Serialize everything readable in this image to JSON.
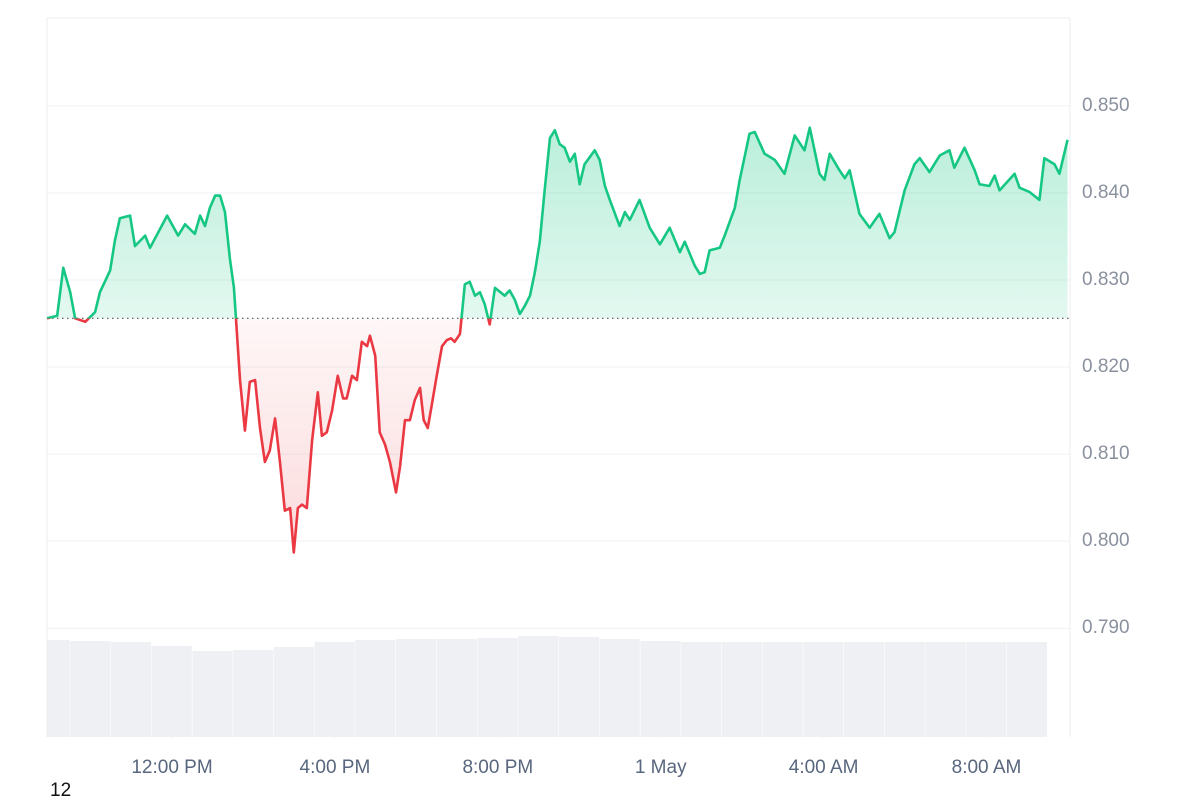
{
  "chart_data": {
    "type": "line",
    "corner_text": "12",
    "x": [
      8.93,
      9.18,
      9.33,
      9.5,
      9.62,
      9.87,
      10.11,
      10.23,
      10.48,
      10.6,
      10.72,
      10.97,
      11.09,
      11.34,
      11.46,
      11.88,
      12.15,
      12.32,
      12.56,
      12.69,
      12.81,
      12.93,
      13.06,
      13.18,
      13.3,
      13.42,
      13.52,
      13.67,
      13.79,
      13.91,
      14.04,
      14.16,
      14.28,
      14.4,
      14.53,
      14.65,
      14.77,
      14.9,
      14.99,
      15.09,
      15.19,
      15.31,
      15.44,
      15.58,
      15.68,
      15.8,
      15.93,
      16.07,
      16.2,
      16.29,
      16.42,
      16.54,
      16.66,
      16.79,
      16.86,
      16.99,
      17.1,
      17.23,
      17.35,
      17.5,
      17.6,
      17.72,
      17.84,
      17.96,
      18.09,
      18.18,
      18.28,
      18.38,
      18.5,
      18.63,
      18.75,
      18.85,
      18.94,
      19.07,
      19.19,
      19.31,
      19.44,
      19.56,
      19.68,
      19.8,
      19.93,
      20.17,
      20.29,
      20.42,
      20.54,
      20.66,
      20.79,
      20.91,
      21.03,
      21.15,
      21.28,
      21.4,
      21.52,
      21.64,
      21.77,
      21.89,
      22.01,
      22.13,
      22.38,
      22.5,
      22.63,
      22.75,
      22.99,
      23.12,
      23.24,
      23.48,
      23.73,
      23.98,
      24.22,
      24.47,
      24.59,
      24.84,
      24.96,
      25.08,
      25.2,
      25.45,
      25.57,
      25.82,
      25.94,
      26.18,
      26.31,
      26.55,
      26.8,
      27.04,
      27.29,
      27.53,
      27.66,
      27.9,
      28.02,
      28.15,
      28.39,
      28.52,
      28.64,
      28.88,
      29.13,
      29.37,
      29.62,
      29.74,
      29.99,
      30.23,
      30.36,
      30.6,
      30.85,
      31.09,
      31.21,
      31.46,
      31.71,
      31.83,
      32.07,
      32.2,
      32.32,
      32.69,
      32.81,
      33.06,
      33.3,
      33.42,
      33.67,
      33.79,
      33.99
    ],
    "series": [
      {
        "name": "Price",
        "up_color": "#16c784",
        "down_color": "#ea3943",
        "values": [
          0.8256,
          0.8259,
          0.8314,
          0.8286,
          0.8256,
          0.8252,
          0.8263,
          0.8286,
          0.8311,
          0.8346,
          0.8371,
          0.8374,
          0.8339,
          0.8351,
          0.8337,
          0.8374,
          0.8351,
          0.8364,
          0.8353,
          0.8374,
          0.8362,
          0.8383,
          0.8397,
          0.8397,
          0.8378,
          0.8325,
          0.8291,
          0.8185,
          0.8127,
          0.8183,
          0.8185,
          0.813,
          0.8091,
          0.8104,
          0.8141,
          0.8091,
          0.8035,
          0.8038,
          0.7987,
          0.8038,
          0.8042,
          0.8038,
          0.8116,
          0.8171,
          0.8121,
          0.8125,
          0.815,
          0.819,
          0.8164,
          0.8164,
          0.819,
          0.8185,
          0.8229,
          0.8224,
          0.8236,
          0.8213,
          0.8125,
          0.8111,
          0.8091,
          0.8056,
          0.8086,
          0.8139,
          0.8139,
          0.8162,
          0.8176,
          0.8139,
          0.813,
          0.8157,
          0.819,
          0.8224,
          0.8231,
          0.8233,
          0.8229,
          0.8238,
          0.8295,
          0.8298,
          0.8282,
          0.8286,
          0.8272,
          0.8249,
          0.8291,
          0.8282,
          0.8288,
          0.8277,
          0.8261,
          0.827,
          0.8282,
          0.8309,
          0.8344,
          0.8403,
          0.8463,
          0.8472,
          0.8456,
          0.8452,
          0.8436,
          0.8445,
          0.841,
          0.8433,
          0.8449,
          0.8438,
          0.8408,
          0.8392,
          0.8362,
          0.8378,
          0.8369,
          0.8392,
          0.836,
          0.8341,
          0.836,
          0.8332,
          0.8344,
          0.8316,
          0.8307,
          0.8309,
          0.8334,
          0.8337,
          0.8351,
          0.8383,
          0.8415,
          0.8468,
          0.847,
          0.8445,
          0.8438,
          0.8422,
          0.8466,
          0.8449,
          0.8475,
          0.8422,
          0.8415,
          0.8445,
          0.8426,
          0.8417,
          0.8426,
          0.8376,
          0.836,
          0.8376,
          0.8348,
          0.8355,
          0.8403,
          0.8433,
          0.844,
          0.8424,
          0.8443,
          0.8449,
          0.8429,
          0.8452,
          0.8426,
          0.841,
          0.8408,
          0.842,
          0.8403,
          0.8422,
          0.8406,
          0.8401,
          0.8392,
          0.844,
          0.8433,
          0.8422,
          0.8461
        ]
      }
    ],
    "baseline": 0.8256,
    "volume": {
      "color": "#eef0f3",
      "x": [
        9,
        10,
        11,
        12,
        13,
        14,
        15,
        16,
        17,
        18,
        19,
        20,
        21,
        22,
        23,
        24,
        25,
        26,
        27,
        28,
        29,
        30,
        31,
        32,
        33
      ],
      "values": [
        97,
        96,
        95,
        91,
        86,
        87,
        90,
        95,
        97,
        98,
        98,
        99,
        101,
        100,
        98,
        96,
        95,
        95,
        95,
        95,
        95,
        95,
        95,
        95,
        95
      ]
    },
    "xlim": [
      8.93,
      34.05
    ],
    "xticks": [
      {
        "value": 12,
        "label": "12:00 PM"
      },
      {
        "value": 16,
        "label": "4:00 PM"
      },
      {
        "value": 20,
        "label": "8:00 PM"
      },
      {
        "value": 24,
        "label": "1 May"
      },
      {
        "value": 28,
        "label": "4:00 AM"
      },
      {
        "value": 32,
        "label": "8:00 AM"
      }
    ],
    "ylim": [
      0.7775,
      0.8601
    ],
    "yticks": [
      {
        "value": 0.79,
        "label": "0.790"
      },
      {
        "value": 0.8,
        "label": "0.800"
      },
      {
        "value": 0.81,
        "label": "0.810"
      },
      {
        "value": 0.82,
        "label": "0.820"
      },
      {
        "value": 0.83,
        "label": "0.830"
      },
      {
        "value": 0.84,
        "label": "0.840"
      },
      {
        "value": 0.85,
        "label": "0.850"
      }
    ],
    "grid": true
  }
}
